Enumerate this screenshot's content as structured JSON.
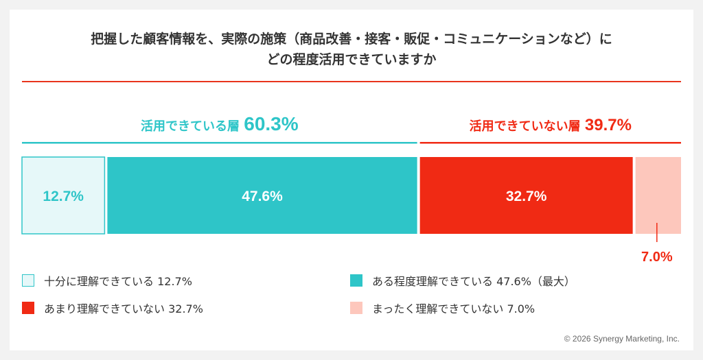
{
  "title_line1": "把握した顧客情報を、実際の施策（商品改善・接客・販促・コミュニケーションなど）に",
  "title_line2": "どの程度活用できていますか",
  "colors": {
    "teal": "#2ec5c8",
    "teal_light": "#e6f8f9",
    "red": "#f02a14",
    "salmon": "#fdc7bc",
    "title_rule": "#e8341c"
  },
  "chart_data": {
    "type": "bar",
    "orientation": "horizontal-stacked-100",
    "categories": [
      "十分に理解できている",
      "ある程度理解できている",
      "あまり理解できていない",
      "まったく理解できていない"
    ],
    "values": [
      12.7,
      47.6,
      32.7,
      7.0
    ],
    "data_labels": [
      "12.7%",
      "47.6%",
      "32.7%",
      "7.0%"
    ],
    "groups": [
      {
        "label": "活用できている層",
        "value_label": "60.3%",
        "members": [
          0,
          1
        ]
      },
      {
        "label": "活用できていない層",
        "value_label": "39.7%",
        "members": [
          2,
          3
        ]
      }
    ]
  },
  "legend": [
    {
      "label": "十分に理解できている 12.7%",
      "color": "#e6f8f9",
      "border": "#2ec5c8"
    },
    {
      "label": "ある程度理解できている 47.6%（最大）",
      "color": "#2ec5c8"
    },
    {
      "label": "あまり理解できていない 32.7%",
      "color": "#f02a14"
    },
    {
      "label": "まったく理解できていない 7.0%",
      "color": "#fdc7bc"
    }
  ],
  "footer": "© 2026 Synergy Marketing, Inc."
}
